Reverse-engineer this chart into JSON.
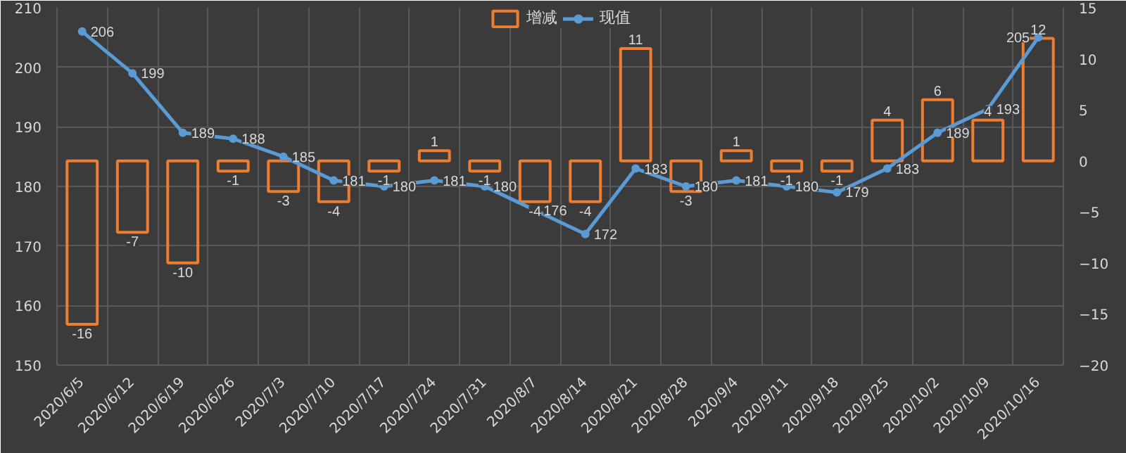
{
  "chart_data": {
    "type": "bar",
    "categories": [
      "2020/6/5",
      "2020/6/12",
      "2020/6/19",
      "2020/6/26",
      "2020/7/3",
      "2020/7/10",
      "2020/7/17",
      "2020/7/24",
      "2020/7/31",
      "2020/8/7",
      "2020/8/14",
      "2020/8/21",
      "2020/8/28",
      "2020/9/4",
      "2020/9/11",
      "2020/9/18",
      "2020/9/25",
      "2020/10/2",
      "2020/10/9",
      "2020/10/16"
    ],
    "series": [
      {
        "name": "增减",
        "axis": "y2",
        "color": "#ed7d31",
        "values": [
          -16,
          -7,
          -10,
          -1,
          -3,
          -4,
          -1,
          1,
          -1,
          -4,
          -4,
          11,
          -3,
          1,
          -1,
          -1,
          4,
          6,
          4,
          12
        ]
      },
      {
        "name": "现值",
        "type": "line",
        "color": "#5b9bd5",
        "values": [
          206,
          199,
          189,
          188,
          185,
          181,
          180,
          181,
          180,
          176,
          172,
          183,
          180,
          181,
          180,
          179,
          183,
          189,
          193,
          205
        ]
      }
    ],
    "ylim": [
      150,
      210
    ],
    "yticks": [
      150,
      160,
      170,
      180,
      190,
      200,
      210
    ],
    "y2lim": [
      -20,
      15
    ],
    "y2ticks": [
      -20,
      -15,
      -10,
      -5,
      0,
      5,
      10,
      15
    ],
    "data_labels": true,
    "grid": true,
    "legend": "top",
    "marker": "circle"
  }
}
